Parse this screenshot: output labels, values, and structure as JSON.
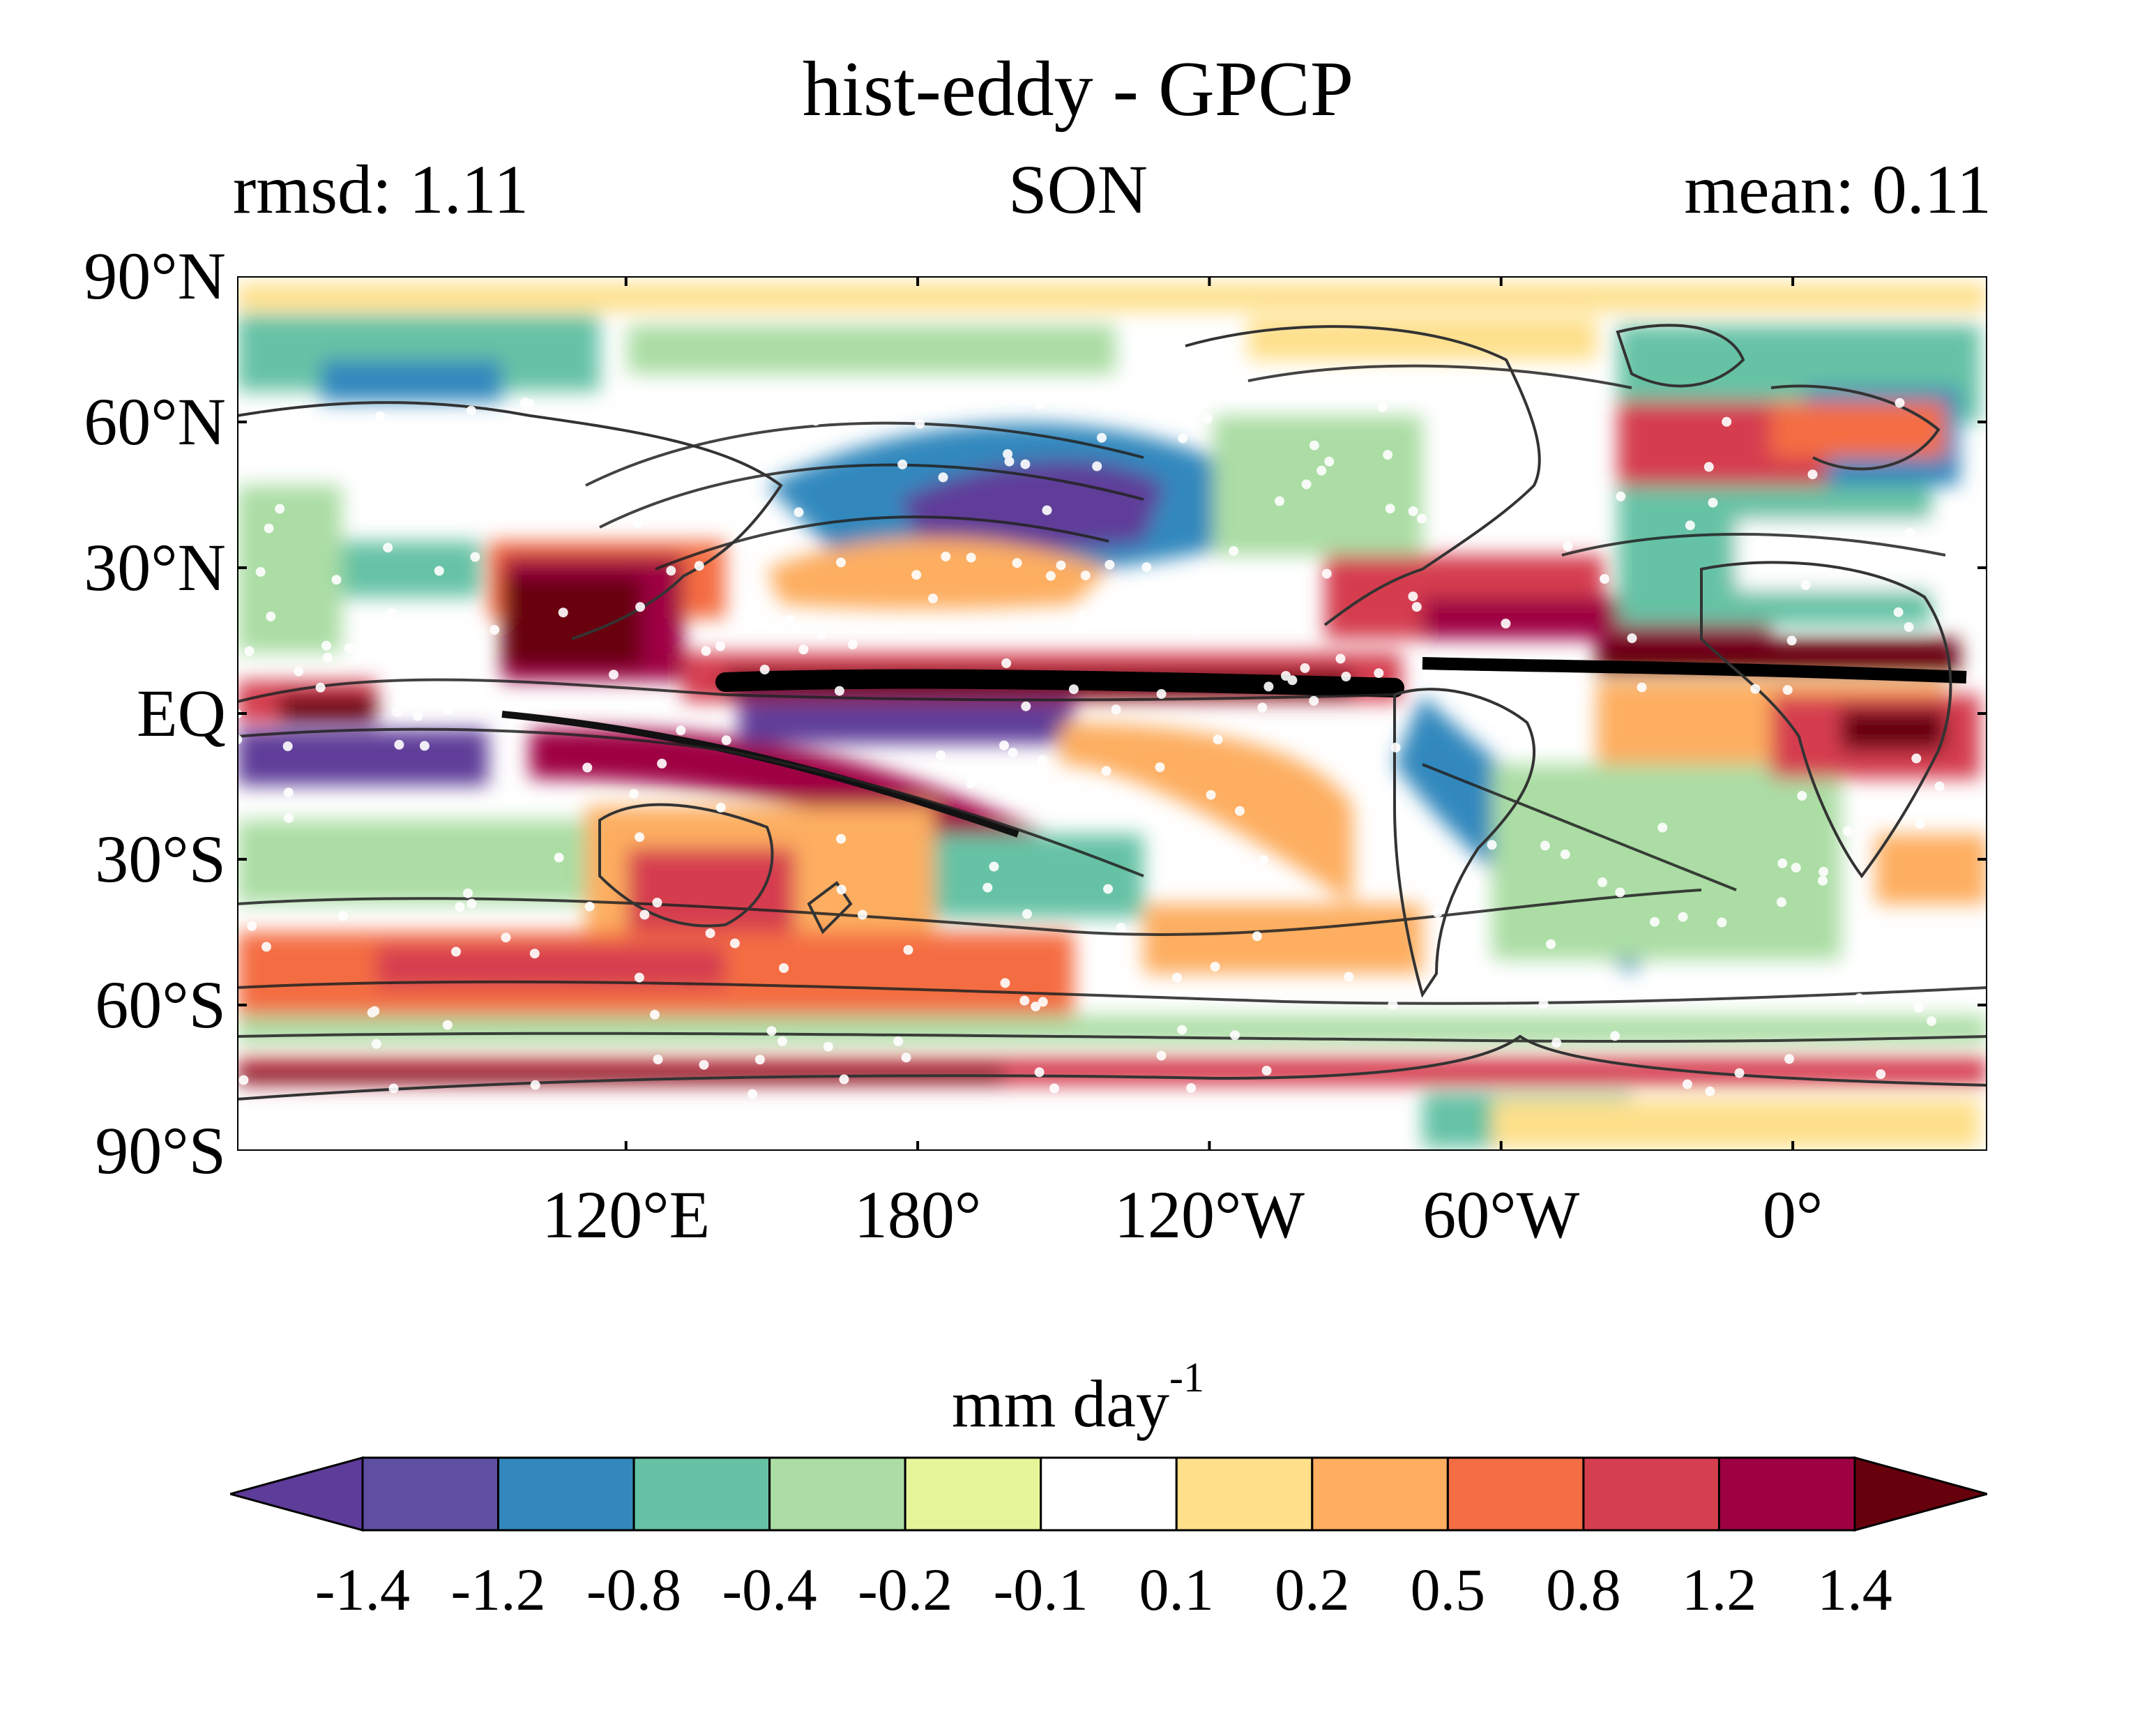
{
  "title": "hist-eddy - GPCP",
  "subtitle": {
    "left": "rmsd: 1.11",
    "center": "SON",
    "right": "mean: 0.11"
  },
  "map": {
    "projection": "equirectangular",
    "lat_ticks": [
      "90°N",
      "60°N",
      "30°N",
      "EQ",
      "30°S",
      "60°S",
      "90°S"
    ],
    "lon_ticks": [
      "120°E",
      "180°",
      "120°W",
      "60°W",
      "0°"
    ],
    "lon_range_deg_east": [
      40,
      400
    ],
    "lat_range": [
      -90,
      90
    ],
    "colors": {
      "levels_neg": [
        "#5e3c99",
        "#3288bd",
        "#66c2a5",
        "#abdda4",
        "#e6f598"
      ],
      "levels_pos": [
        "#fee08b",
        "#fdae61",
        "#f46d43",
        "#d53e4f",
        "#9e0142"
      ],
      "extreme_neg": "#5e3c99",
      "extreme_pos": "#67000d"
    }
  },
  "colorbar": {
    "unit_base": "mm day",
    "unit_exp": "-1",
    "tick_labels": [
      "-1.4",
      "-1.2",
      "-0.8",
      "-0.4",
      "-0.2",
      "-0.1",
      "0.1",
      "0.2",
      "0.5",
      "0.8",
      "1.2",
      "1.4"
    ],
    "colors": [
      "#5e3c99",
      "#5e4fa2",
      "#3288bd",
      "#66c2a5",
      "#abdda4",
      "#e6f598",
      "#ffffff",
      "#fee08b",
      "#fdae61",
      "#f46d43",
      "#d53e4f",
      "#9e0142",
      "#67000d"
    ]
  }
}
